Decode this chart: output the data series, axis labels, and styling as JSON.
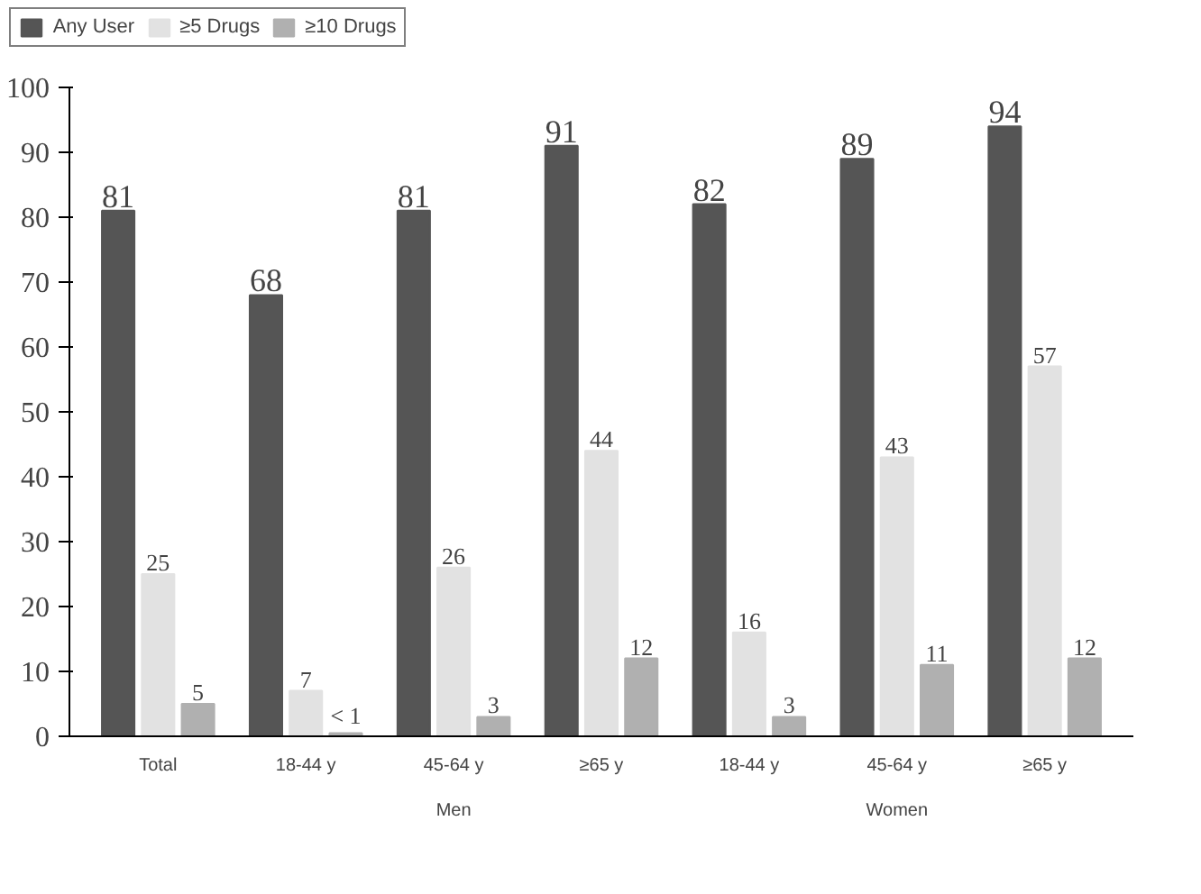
{
  "chart_data": {
    "type": "bar",
    "categories": [
      "Total",
      "18-44 y",
      "45-64 y",
      "≥65 y",
      "18-44 y",
      "45-64 y",
      "≥65 y"
    ],
    "series": [
      {
        "name": "Any User",
        "color": "#555555",
        "values": [
          81,
          68,
          81,
          91,
          82,
          89,
          94
        ],
        "value_labels": [
          "81",
          "68",
          "81",
          "91",
          "82",
          "89",
          "94"
        ]
      },
      {
        "name": "≥5 Drugs",
        "color": "#e2e2e2",
        "values": [
          25,
          7,
          26,
          44,
          16,
          43,
          57
        ],
        "value_labels": [
          "25",
          "7",
          "26",
          "44",
          "16",
          "43",
          "57"
        ]
      },
      {
        "name": "≥10 Drugs",
        "color": "#b0b0b0",
        "values": [
          5,
          0.5,
          3,
          12,
          3,
          11,
          12
        ],
        "value_labels": [
          "5",
          "< 1",
          "3",
          "12",
          "3",
          "11",
          "12"
        ]
      }
    ],
    "annotations": [
      "Men",
      "Women"
    ],
    "ylim": [
      0,
      100
    ],
    "yticks": [
      0,
      10,
      20,
      30,
      40,
      50,
      60,
      70,
      80,
      90,
      100
    ],
    "grid": false,
    "legend": "top"
  }
}
